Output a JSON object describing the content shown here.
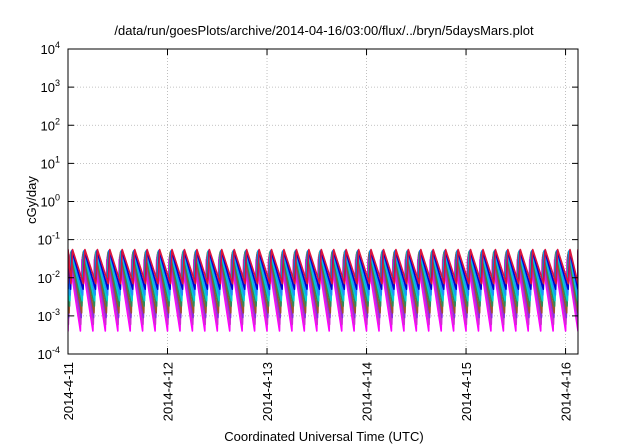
{
  "chart_data": {
    "type": "line",
    "title": "/data/run/goesPlots/archive/2014-04-16/03:00/flux/../bryn/5daysMars.plot",
    "xlabel": "Coordinated Universal Time (UTC)",
    "ylabel": "cGy/day",
    "yscale": "log",
    "ylim": [
      0.0001,
      10000
    ],
    "xlim": [
      "2014-04-11 00:00",
      "2014-04-16 03:00"
    ],
    "y_ticks": [
      {
        "value": 0.0001,
        "base": "10",
        "exp": "-4"
      },
      {
        "value": 0.001,
        "base": "10",
        "exp": "-3"
      },
      {
        "value": 0.01,
        "base": "10",
        "exp": "-2"
      },
      {
        "value": 0.1,
        "base": "10",
        "exp": "-1"
      },
      {
        "value": 1,
        "base": "10",
        "exp": "0"
      },
      {
        "value": 10,
        "base": "10",
        "exp": "1"
      },
      {
        "value": 100,
        "base": "10",
        "exp": "2"
      },
      {
        "value": 1000,
        "base": "10",
        "exp": "3"
      },
      {
        "value": 10000,
        "base": "10",
        "exp": "4"
      }
    ],
    "x_ticks": [
      "2014-4-11",
      "2014-4-12",
      "2014-4-13",
      "2014-4-14",
      "2014-4-15",
      "2014-4-16"
    ],
    "grid": true,
    "cycles_per_day": 8,
    "series": [
      {
        "color": "#ff00ff",
        "peak": 0.03,
        "trough": 0.0004
      },
      {
        "color": "#cc33cc",
        "peak": 0.035,
        "trough": 0.0006
      },
      {
        "color": "#8a2be2",
        "peak": 0.04,
        "trough": 0.0009
      },
      {
        "color": "#a0522d",
        "peak": 0.045,
        "trough": 0.0012
      },
      {
        "color": "#2e8b57",
        "peak": 0.048,
        "trough": 0.0018
      },
      {
        "color": "#00ced1",
        "peak": 0.05,
        "trough": 0.0025
      },
      {
        "color": "#1e90ff",
        "peak": 0.052,
        "trough": 0.0035
      },
      {
        "color": "#0000cd",
        "peak": 0.05,
        "trough": 0.005
      },
      {
        "color": "#dc143c",
        "peak": 0.055,
        "trough": 0.007
      }
    ]
  }
}
